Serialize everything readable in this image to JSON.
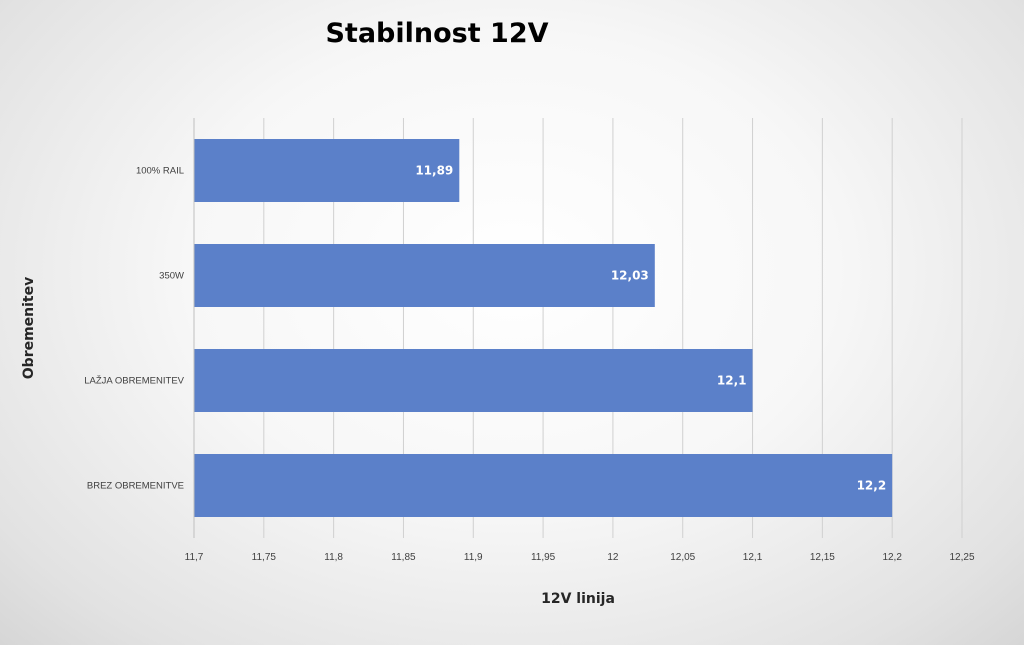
{
  "chart_data": {
    "type": "bar",
    "orientation": "horizontal",
    "title": "Stabilnost 12V",
    "xlabel": "12V linija",
    "ylabel": "Obremenitev",
    "categories": [
      "100% RAIL",
      "350W",
      "LAŽJA OBREMENITEV",
      "BREZ OBREMENITVE"
    ],
    "values": [
      11.89,
      12.03,
      12.1,
      12.2
    ],
    "data_labels": [
      "11,89",
      "12,03",
      "12,1",
      "12,2"
    ],
    "xlim": [
      11.7,
      12.25
    ],
    "x_ticks": [
      11.7,
      11.75,
      11.8,
      11.85,
      11.9,
      11.95,
      12,
      12.05,
      12.1,
      12.15,
      12.2,
      12.25
    ],
    "x_tick_labels": [
      "11,7",
      "11,75",
      "11,8",
      "11,85",
      "11,9",
      "11,95",
      "12",
      "12,05",
      "12,1",
      "12,15",
      "12,2",
      "12,25"
    ],
    "grid": "vertical",
    "legend": "none",
    "colors": {
      "bar": "#5b80c9",
      "grid": "#d0d0d0",
      "axis": "#bfbfbf"
    }
  }
}
